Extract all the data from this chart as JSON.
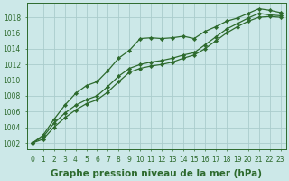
{
  "x": [
    0,
    1,
    2,
    3,
    4,
    5,
    6,
    7,
    8,
    9,
    10,
    11,
    12,
    13,
    14,
    15,
    16,
    17,
    18,
    19,
    20,
    21,
    22,
    23
  ],
  "line1": [
    1002.0,
    1003.0,
    1005.0,
    1006.8,
    1008.3,
    1009.3,
    1009.8,
    1011.2,
    1012.8,
    1013.8,
    1015.3,
    1015.4,
    1015.3,
    1015.4,
    1015.6,
    1015.3,
    1016.2,
    1016.8,
    1017.5,
    1017.9,
    1018.5,
    1019.1,
    1018.9,
    1018.6
  ],
  "line2": [
    1002.0,
    1002.8,
    1004.5,
    1005.8,
    1006.8,
    1007.5,
    1008.0,
    1009.2,
    1010.5,
    1011.5,
    1012.0,
    1012.3,
    1012.5,
    1012.8,
    1013.2,
    1013.5,
    1014.5,
    1015.5,
    1016.5,
    1017.2,
    1017.9,
    1018.5,
    1018.3,
    1018.2
  ],
  "line3": [
    1002.0,
    1002.5,
    1004.0,
    1005.2,
    1006.2,
    1007.0,
    1007.5,
    1008.5,
    1009.8,
    1011.0,
    1011.5,
    1011.8,
    1012.0,
    1012.3,
    1012.8,
    1013.2,
    1014.0,
    1015.0,
    1016.0,
    1016.8,
    1017.5,
    1018.0,
    1018.1,
    1018.0
  ],
  "line_color": "#2d6a2d",
  "marker": "D",
  "markersize": 2.2,
  "linewidth": 0.9,
  "bg_color": "#cce8e8",
  "grid_color": "#aacccc",
  "ylabel_ticks": [
    1002,
    1004,
    1006,
    1008,
    1010,
    1012,
    1014,
    1016,
    1018
  ],
  "xlabel": "Graphe pression niveau de la mer (hPa)",
  "xlim": [
    -0.5,
    23.5
  ],
  "ylim": [
    1001.2,
    1019.8
  ],
  "tick_fontsize": 5.5,
  "xlabel_fontsize": 7.5
}
